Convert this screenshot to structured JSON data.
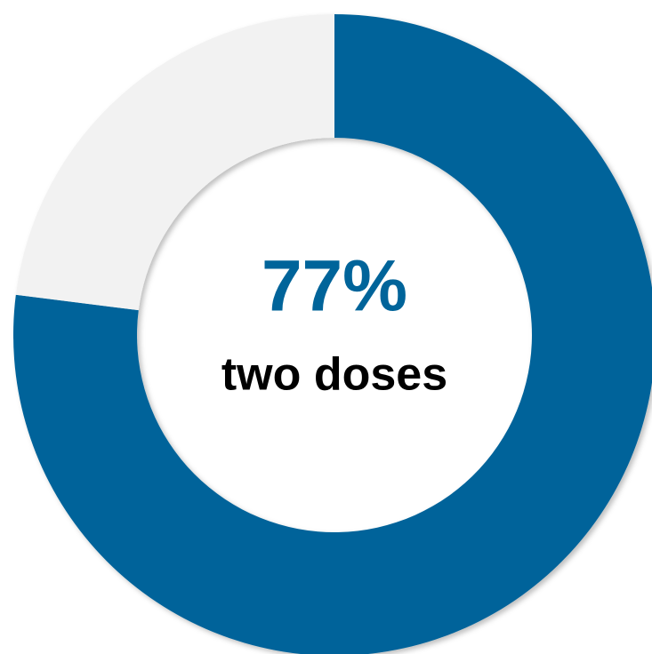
{
  "chart_data": {
    "type": "donut",
    "categories": [
      "two doses",
      null
    ],
    "values": [
      77,
      23
    ],
    "value_labels": [
      "77%",
      null
    ],
    "colors": [
      "#00649a",
      "#f2f2f2"
    ],
    "label_color": "#00649a",
    "category_color": "#000000"
  }
}
